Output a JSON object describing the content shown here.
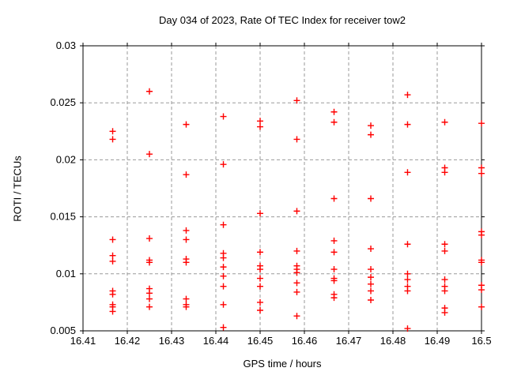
{
  "page": {
    "background": "#ffffff"
  },
  "chart_data": {
    "type": "scatter",
    "title": "Day 034 of 2023, Rate Of TEC Index for receiver tow2",
    "xlabel": "GPS time / hours",
    "ylabel": "ROTI / TECUs",
    "xlim": [
      16.41,
      16.5
    ],
    "ylim": [
      0.005,
      0.03
    ],
    "grid": true,
    "legend_position": "none",
    "axis_color": "#000000",
    "grid_color": "#9a9a9a",
    "marker": {
      "shape": "plus",
      "color": "#ff0000",
      "size": 9
    },
    "xticks": {
      "values": [
        16.41,
        16.42,
        16.43,
        16.44,
        16.45,
        16.46,
        16.47,
        16.48,
        16.49,
        16.5
      ],
      "labels": [
        "16.41",
        "16.42",
        "16.43",
        "16.44",
        "16.45",
        "16.46",
        "16.47",
        "16.48",
        "16.49",
        "16.5"
      ]
    },
    "yticks": {
      "values": [
        0.005,
        0.01,
        0.015,
        0.02,
        0.025,
        0.03
      ],
      "labels": [
        "0.005",
        "0.01",
        "0.015",
        "0.02",
        "0.025",
        "0.03"
      ]
    },
    "series": [
      {
        "name": "ROTI",
        "points": [
          [
            16.4167,
            0.0225
          ],
          [
            16.4167,
            0.0218
          ],
          [
            16.4167,
            0.013
          ],
          [
            16.4167,
            0.0116
          ],
          [
            16.4167,
            0.0111
          ],
          [
            16.4167,
            0.0085
          ],
          [
            16.4167,
            0.0082
          ],
          [
            16.4167,
            0.0073
          ],
          [
            16.4167,
            0.0071
          ],
          [
            16.4167,
            0.0067
          ],
          [
            16.425,
            0.026
          ],
          [
            16.425,
            0.0205
          ],
          [
            16.425,
            0.0131
          ],
          [
            16.425,
            0.0112
          ],
          [
            16.425,
            0.011
          ],
          [
            16.425,
            0.0087
          ],
          [
            16.425,
            0.0083
          ],
          [
            16.425,
            0.0078
          ],
          [
            16.425,
            0.0071
          ],
          [
            16.4333,
            0.0231
          ],
          [
            16.4333,
            0.0187
          ],
          [
            16.4333,
            0.0138
          ],
          [
            16.4333,
            0.013
          ],
          [
            16.4333,
            0.0113
          ],
          [
            16.4333,
            0.011
          ],
          [
            16.4333,
            0.0078
          ],
          [
            16.4333,
            0.0073
          ],
          [
            16.4333,
            0.0071
          ],
          [
            16.4417,
            0.0238
          ],
          [
            16.4417,
            0.0196
          ],
          [
            16.4417,
            0.0143
          ],
          [
            16.4417,
            0.0118
          ],
          [
            16.4417,
            0.0114
          ],
          [
            16.4417,
            0.0106
          ],
          [
            16.4417,
            0.0098
          ],
          [
            16.4417,
            0.0089
          ],
          [
            16.4417,
            0.0073
          ],
          [
            16.4417,
            0.0053
          ],
          [
            16.45,
            0.0234
          ],
          [
            16.45,
            0.0229
          ],
          [
            16.45,
            0.0153
          ],
          [
            16.45,
            0.0119
          ],
          [
            16.45,
            0.0107
          ],
          [
            16.45,
            0.0104
          ],
          [
            16.45,
            0.0096
          ],
          [
            16.45,
            0.0089
          ],
          [
            16.45,
            0.0075
          ],
          [
            16.45,
            0.0068
          ],
          [
            16.4583,
            0.0252
          ],
          [
            16.4583,
            0.0218
          ],
          [
            16.4583,
            0.0155
          ],
          [
            16.4583,
            0.012
          ],
          [
            16.4583,
            0.0107
          ],
          [
            16.4583,
            0.0104
          ],
          [
            16.4583,
            0.0101
          ],
          [
            16.4583,
            0.0092
          ],
          [
            16.4583,
            0.0084
          ],
          [
            16.4583,
            0.0063
          ],
          [
            16.4667,
            0.0242
          ],
          [
            16.4667,
            0.0233
          ],
          [
            16.4667,
            0.0166
          ],
          [
            16.4667,
            0.0129
          ],
          [
            16.4667,
            0.0119
          ],
          [
            16.4667,
            0.0104
          ],
          [
            16.4667,
            0.0096
          ],
          [
            16.4667,
            0.0094
          ],
          [
            16.4667,
            0.0082
          ],
          [
            16.4667,
            0.0079
          ],
          [
            16.475,
            0.023
          ],
          [
            16.475,
            0.0222
          ],
          [
            16.475,
            0.0166
          ],
          [
            16.475,
            0.0122
          ],
          [
            16.475,
            0.0104
          ],
          [
            16.475,
            0.0097
          ],
          [
            16.475,
            0.0091
          ],
          [
            16.475,
            0.0085
          ],
          [
            16.475,
            0.0077
          ],
          [
            16.4833,
            0.0257
          ],
          [
            16.4833,
            0.0231
          ],
          [
            16.4833,
            0.0189
          ],
          [
            16.4833,
            0.0126
          ],
          [
            16.4833,
            0.01
          ],
          [
            16.4833,
            0.0095
          ],
          [
            16.4833,
            0.0089
          ],
          [
            16.4833,
            0.0085
          ],
          [
            16.4833,
            0.0052
          ],
          [
            16.4917,
            0.0233
          ],
          [
            16.4917,
            0.0193
          ],
          [
            16.4917,
            0.0189
          ],
          [
            16.4917,
            0.0126
          ],
          [
            16.4917,
            0.012
          ],
          [
            16.4917,
            0.0095
          ],
          [
            16.4917,
            0.0089
          ],
          [
            16.4917,
            0.0085
          ],
          [
            16.4917,
            0.007
          ],
          [
            16.4917,
            0.0066
          ],
          [
            16.5,
            0.0232
          ],
          [
            16.5,
            0.0193
          ],
          [
            16.5,
            0.0188
          ],
          [
            16.5,
            0.0137
          ],
          [
            16.5,
            0.0134
          ],
          [
            16.5,
            0.0112
          ],
          [
            16.5,
            0.011
          ],
          [
            16.5,
            0.009
          ],
          [
            16.5,
            0.0086
          ],
          [
            16.5,
            0.0071
          ]
        ]
      }
    ]
  }
}
